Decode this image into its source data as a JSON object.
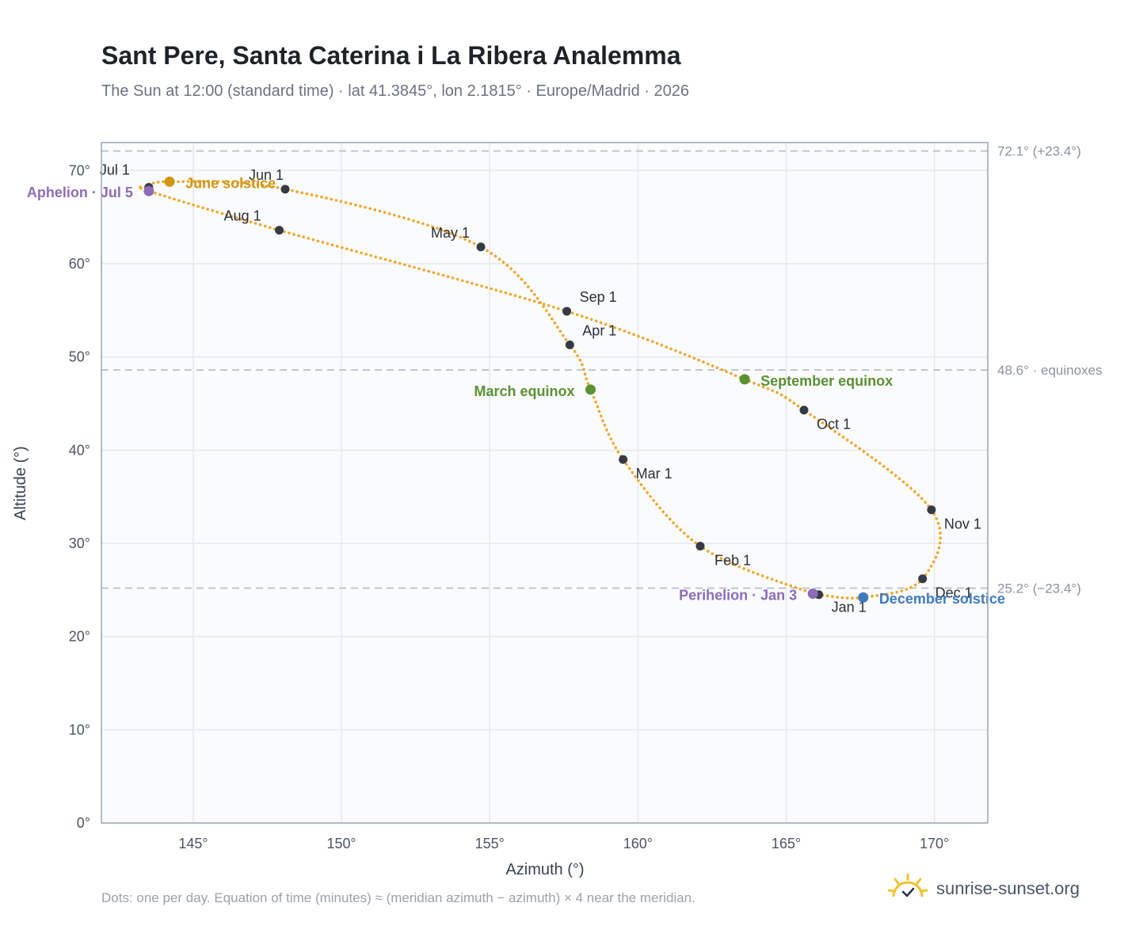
{
  "title": "Sant Pere, Santa Caterina i La Ribera Analemma",
  "subtitle": "The Sun at 12:00 (standard time) · lat 41.3845°, lon 2.1815° · Europe/Madrid · 2026",
  "footnote": "Dots: one per day. Equation of time (minutes) ≈ (meridian azimuth − azimuth) × 4 near the meridian.",
  "brand": {
    "name": "sunrise-sunset.org",
    "icon": "sun-logo-icon"
  },
  "colors": {
    "curve": "#f2a62b",
    "month_marker": "#353b45",
    "aphelion": "#8e6bb8",
    "june_solstice": "#d4940f",
    "equinox": "#5a9132",
    "december_solstice": "#3f7ac0",
    "reference_line": "#b8c0cc",
    "grid": "#e5e8ec",
    "plot_bg": "#fafbfd",
    "axis_frame": "#9aa4b1"
  },
  "chart_data": {
    "type": "scatter",
    "title": "Sant Pere, Santa Caterina i La Ribera Analemma",
    "xlabel": "Azimuth (°)",
    "ylabel": "Altitude (°)",
    "xlim": [
      141.9,
      171.8
    ],
    "ylim": [
      0,
      73
    ],
    "xticks": [
      145,
      150,
      155,
      160,
      165,
      170
    ],
    "yticks": [
      0,
      10,
      20,
      30,
      40,
      50,
      60,
      70
    ],
    "xtick_labels": [
      "145°",
      "150°",
      "155°",
      "160°",
      "165°",
      "170°"
    ],
    "ytick_labels": [
      "0°",
      "10°",
      "20°",
      "30°",
      "40°",
      "50°",
      "60°",
      "70°"
    ],
    "grid": true,
    "reference_lines": [
      {
        "y": 72.1,
        "label": "72.1° (+23.4°)"
      },
      {
        "y": 48.6,
        "label": "48.6° · equinoxes"
      },
      {
        "y": 25.2,
        "label": "25.2° (−23.4°)"
      }
    ],
    "month_points": [
      {
        "label": "Jan 1",
        "az": 166.1,
        "alt": 24.5
      },
      {
        "label": "Feb 1",
        "az": 162.1,
        "alt": 29.7
      },
      {
        "label": "Mar 1",
        "az": 159.5,
        "alt": 39.0
      },
      {
        "label": "Apr 1",
        "az": 157.7,
        "alt": 51.3
      },
      {
        "label": "May 1",
        "az": 154.7,
        "alt": 61.8
      },
      {
        "label": "Jun 1",
        "az": 148.1,
        "alt": 68.0
      },
      {
        "label": "Jul 1",
        "az": 143.5,
        "alt": 68.2
      },
      {
        "label": "Aug 1",
        "az": 147.9,
        "alt": 63.6
      },
      {
        "label": "Sep 1",
        "az": 157.6,
        "alt": 54.9
      },
      {
        "label": "Oct 1",
        "az": 165.6,
        "alt": 44.3
      },
      {
        "label": "Nov 1",
        "az": 169.9,
        "alt": 33.6
      },
      {
        "label": "Dec 1",
        "az": 169.6,
        "alt": 26.2
      }
    ],
    "events": [
      {
        "label": "Aphelion · Jul 5",
        "az": 143.5,
        "alt": 67.8,
        "color_key": "aphelion"
      },
      {
        "label": "June solstice",
        "az": 144.2,
        "alt": 68.8,
        "color_key": "june_solstice"
      },
      {
        "label": "March equinox",
        "az": 158.4,
        "alt": 46.5,
        "color_key": "equinox"
      },
      {
        "label": "September equinox",
        "az": 163.6,
        "alt": 47.6,
        "color_key": "equinox"
      },
      {
        "label": "Perihelion · Jan 3",
        "az": 165.9,
        "alt": 24.6,
        "color_key": "aphelion"
      },
      {
        "label": "December solstice",
        "az": 167.6,
        "alt": 24.2,
        "color_key": "december_solstice"
      }
    ]
  }
}
